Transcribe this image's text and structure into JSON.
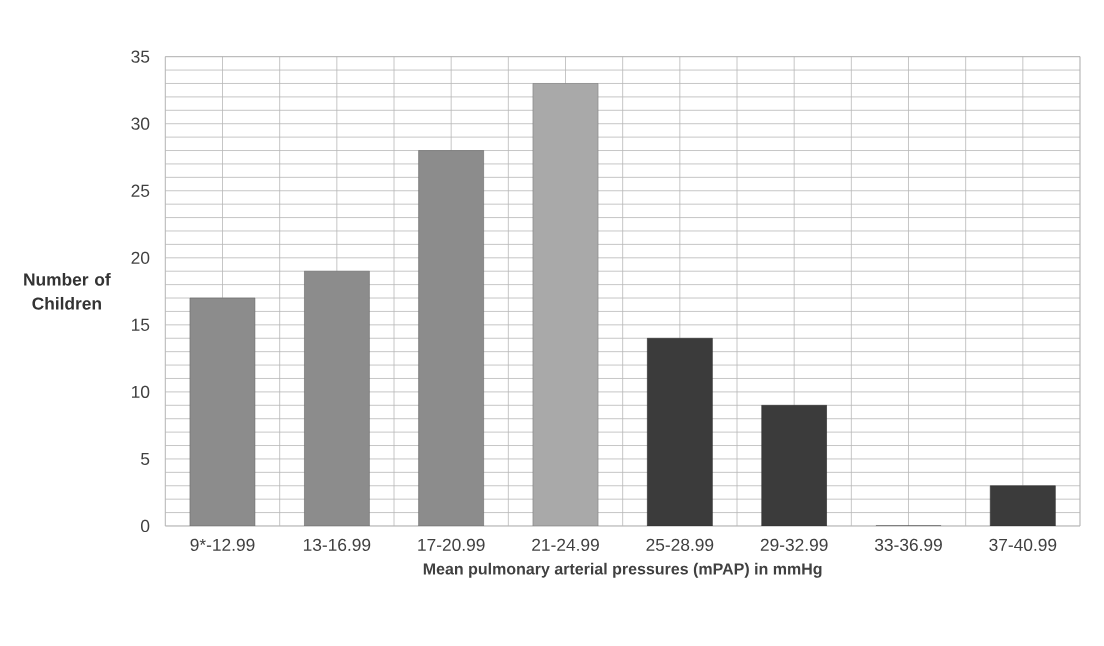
{
  "chart_data": {
    "type": "bar",
    "xlabel": "Mean pulmonary arterial pressures (mPAP) in mmHg",
    "ylabel": "Number of Children",
    "categories": [
      "9*-12.99",
      "13-16.99",
      "17-20.99",
      "21-24.99",
      "25-28.99",
      "29-32.99",
      "33-36.99",
      "37-40.99"
    ],
    "values": [
      17,
      19,
      28,
      33,
      14,
      9,
      0,
      3
    ],
    "colors": [
      "#8c8c8c",
      "#8c8c8c",
      "#8c8c8c",
      "#a9a9a9",
      "#3b3b3b",
      "#3b3b3b",
      "#3b3b3b",
      "#3b3b3b"
    ],
    "ylim": [
      0,
      35
    ],
    "yticks": [
      0,
      5,
      10,
      15,
      20,
      25,
      30,
      35
    ],
    "grid": true
  }
}
